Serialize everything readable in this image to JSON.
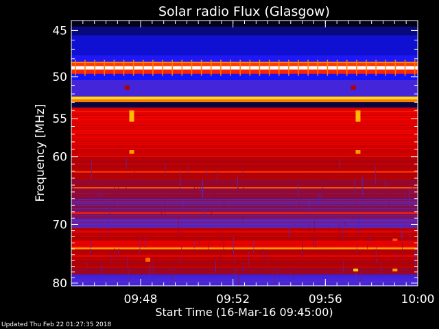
{
  "chart_data": {
    "type": "heatmap",
    "title": "Solar radio Flux (Glasgow)",
    "xlabel": "Start Time (16-Mar-16 09:45:00)",
    "ylabel": "Frequency [MHz]",
    "x_start_minute": 0,
    "x_end_minute": 15,
    "x_ticks": [
      {
        "minute": 3,
        "label": "09:48"
      },
      {
        "minute": 7,
        "label": "09:52"
      },
      {
        "minute": 11,
        "label": "09:56"
      },
      {
        "minute": 15,
        "label": "10:00"
      }
    ],
    "x_minor_step_minutes": 0.5,
    "ylim": [
      44,
      80.5
    ],
    "y_scale": "log",
    "y_ticks": [
      45,
      50,
      55,
      60,
      70,
      80
    ],
    "y_minor_ticks": [
      46,
      47,
      48,
      49,
      51,
      52,
      53,
      54,
      56,
      57,
      58,
      59,
      61,
      62,
      63,
      64,
      65,
      66,
      67,
      68,
      69,
      71,
      72,
      73,
      74,
      75,
      76,
      77,
      78,
      79
    ],
    "colormap": [
      "#000000",
      "#0a0a8c",
      "#1414ff",
      "#5a2cc8",
      "#8c0a3c",
      "#b40000",
      "#ff0000",
      "#ff7a00",
      "#ffd200",
      "#ffffff"
    ],
    "bands": [
      {
        "f_from": 44.0,
        "f_to": 44.6,
        "level": 0.02
      },
      {
        "f_from": 44.6,
        "f_to": 45.5,
        "level": 0.1
      },
      {
        "f_from": 45.5,
        "f_to": 47.6,
        "level": 0.18
      },
      {
        "f_from": 47.6,
        "f_to": 48.4,
        "level": 0.24
      },
      {
        "f_from": 48.4,
        "f_to": 48.8,
        "level": 0.72
      },
      {
        "f_from": 48.8,
        "f_to": 49.2,
        "level": 1.0
      },
      {
        "f_from": 49.2,
        "f_to": 49.6,
        "level": 0.7
      },
      {
        "f_from": 49.6,
        "f_to": 50.4,
        "level": 0.22
      },
      {
        "f_from": 50.4,
        "f_to": 52.3,
        "level": 0.3
      },
      {
        "f_from": 52.3,
        "f_to": 52.7,
        "level": 0.86
      },
      {
        "f_from": 52.7,
        "f_to": 53.0,
        "level": 0.78
      },
      {
        "f_from": 53.0,
        "f_to": 53.6,
        "level": 0.05
      },
      {
        "f_from": 53.6,
        "f_to": 58.0,
        "level": 0.62
      },
      {
        "f_from": 58.0,
        "f_to": 60.0,
        "level": 0.6
      },
      {
        "f_from": 60.0,
        "f_to": 61.5,
        "level": 0.54
      },
      {
        "f_from": 61.5,
        "f_to": 63.2,
        "level": 0.55
      },
      {
        "f_from": 63.2,
        "f_to": 66.0,
        "level": 0.47
      },
      {
        "f_from": 66.0,
        "f_to": 67.2,
        "level": 0.38
      },
      {
        "f_from": 67.2,
        "f_to": 69.0,
        "level": 0.42
      },
      {
        "f_from": 69.0,
        "f_to": 70.6,
        "level": 0.35
      },
      {
        "f_from": 70.6,
        "f_to": 72.6,
        "level": 0.56
      },
      {
        "f_from": 72.6,
        "f_to": 73.6,
        "level": 0.62
      },
      {
        "f_from": 73.6,
        "f_to": 74.2,
        "level": 0.7
      },
      {
        "f_from": 74.2,
        "f_to": 77.3,
        "level": 0.55
      },
      {
        "f_from": 77.3,
        "f_to": 78.4,
        "level": 0.47
      },
      {
        "f_from": 78.4,
        "f_to": 80.5,
        "level": 0.3
      }
    ],
    "hot_lines": [
      {
        "freq": 48.4,
        "level": 0.8
      },
      {
        "freq": 49.6,
        "level": 0.7
      },
      {
        "freq": 52.5,
        "level": 0.92
      },
      {
        "freq": 62.1,
        "level": 0.72
      },
      {
        "freq": 64.4,
        "level": 0.74
      },
      {
        "freq": 68.2,
        "level": 0.7
      },
      {
        "freq": 71.2,
        "level": 0.66
      },
      {
        "freq": 73.9,
        "level": 0.84
      },
      {
        "freq": 75.2,
        "level": 0.66
      }
    ],
    "bursts": [
      {
        "minute": 2.6,
        "f_from": 54.0,
        "f_to": 55.4,
        "level": 0.86
      },
      {
        "minute": 2.6,
        "f_from": 59.1,
        "f_to": 59.6,
        "level": 0.82
      },
      {
        "minute": 12.4,
        "f_from": 54.0,
        "f_to": 55.4,
        "level": 0.86
      },
      {
        "minute": 12.4,
        "f_from": 59.1,
        "f_to": 59.6,
        "level": 0.82
      },
      {
        "minute": 12.3,
        "f_from": 77.4,
        "f_to": 77.9,
        "level": 0.88
      },
      {
        "minute": 14.0,
        "f_from": 77.4,
        "f_to": 77.9,
        "level": 0.82
      },
      {
        "minute": 14.0,
        "f_from": 72.3,
        "f_to": 72.7,
        "level": 0.74
      },
      {
        "minute": 3.3,
        "f_from": 75.5,
        "f_to": 76.2,
        "level": 0.76
      },
      {
        "minute": 2.4,
        "f_from": 51.0,
        "f_to": 51.5,
        "level": 0.55
      },
      {
        "minute": 12.2,
        "f_from": 51.0,
        "f_to": 51.5,
        "level": 0.55
      }
    ]
  },
  "footer": {
    "updated": "Updated Thu Feb 22 01:27:35 2018"
  }
}
